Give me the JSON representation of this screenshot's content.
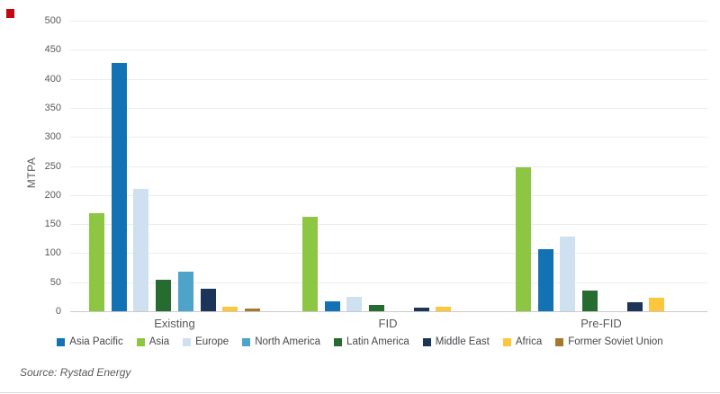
{
  "chart_data": {
    "type": "bar",
    "title": "",
    "xlabel": "",
    "ylabel": "MTPA",
    "ylim": [
      0,
      500
    ],
    "ytick_step": 50,
    "grid": "horizontal",
    "legend_position": "bottom",
    "categories": [
      "Existing",
      "FID",
      "Pre-FID"
    ],
    "series": [
      {
        "name": "Asia",
        "color": "#8cc643",
        "values": [
          168,
          163,
          248
        ]
      },
      {
        "name": "Asia Pacific",
        "color": "#1272b4",
        "values": [
          428,
          17,
          107
        ]
      },
      {
        "name": "Europe",
        "color": "#cfe0f0",
        "values": [
          210,
          25,
          129
        ]
      },
      {
        "name": "Latin America",
        "color": "#266b30",
        "values": [
          54,
          11,
          36
        ]
      },
      {
        "name": "North America",
        "color": "#4ea3cb",
        "values": [
          68,
          0,
          0
        ]
      },
      {
        "name": "Middle East",
        "color": "#1c3457",
        "values": [
          38,
          6,
          16
        ]
      },
      {
        "name": "Africa",
        "color": "#fcc63d",
        "values": [
          7,
          7,
          24
        ]
      },
      {
        "name": "Former Soviet Union",
        "color": "#a5792a",
        "values": [
          4,
          0,
          0
        ]
      }
    ],
    "legend": [
      {
        "label": "Asia Pacific",
        "color": "#1272b4"
      },
      {
        "label": "Asia",
        "color": "#8cc643"
      },
      {
        "label": "Europe",
        "color": "#cfe0f0"
      },
      {
        "label": "North America",
        "color": "#4ea3cb"
      },
      {
        "label": "Latin America",
        "color": "#266b30"
      },
      {
        "label": "Middle East",
        "color": "#1c3457"
      },
      {
        "label": "Africa",
        "color": "#fcc63d"
      },
      {
        "label": "Former Soviet Union",
        "color": "#a5792a"
      }
    ]
  },
  "source_note": "Source: Rystad Energy",
  "marker_color": "#c00a10"
}
